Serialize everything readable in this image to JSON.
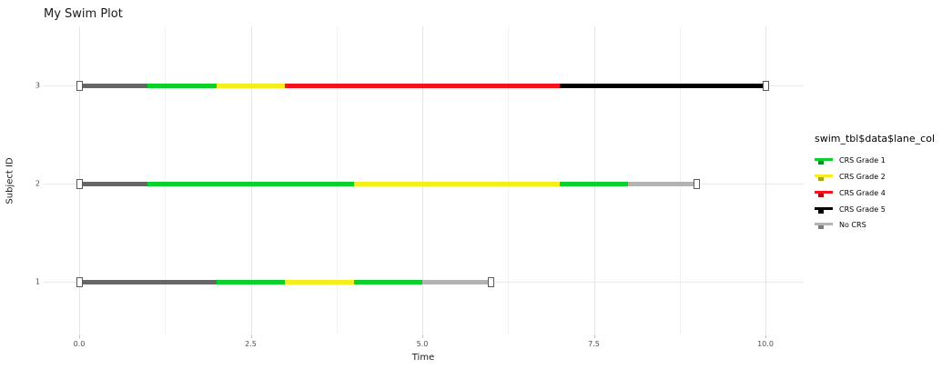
{
  "title": "My Swim Plot",
  "x_axis": {
    "label": "Time",
    "ticks": [
      "0.0",
      "2.5",
      "5.0",
      "7.5",
      "10.0"
    ]
  },
  "y_axis": {
    "label": "Subject ID",
    "ticks": [
      "3",
      "2",
      "1"
    ]
  },
  "legend": {
    "title": "swim_tbl$data$lane_col",
    "items": [
      {
        "label": "CRS Grade 1",
        "color": "#0ad02c"
      },
      {
        "label": "CRS Grade 2",
        "color": "#f7ed1a"
      },
      {
        "label": "CRS Grade 4",
        "color": "#f5121d"
      },
      {
        "label": "CRS Grade 5",
        "color": "#000000"
      },
      {
        "label": "No CRS",
        "color": "#b3b3b3"
      }
    ]
  },
  "chart_data": {
    "type": "swimmer",
    "title": "My Swim Plot",
    "xlabel": "Time",
    "ylabel": "Subject ID",
    "xlim": [
      0,
      10.55
    ],
    "x_major_ticks": [
      0,
      2.5,
      5,
      7.5,
      10
    ],
    "x_major_tick_labels": [
      "0.0",
      "2.5",
      "5.0",
      "7.5",
      "10.0"
    ],
    "x_minor_ticks": [
      1.25,
      3.75,
      6.25,
      8.75
    ],
    "grid": true,
    "legend_position": "right",
    "marker_shape": "open-square",
    "lanes": [
      {
        "subject_id": "3",
        "start_marker": 0,
        "end_marker": 10,
        "segments": [
          {
            "start": 0,
            "end": 1,
            "color": "#666666",
            "category": null
          },
          {
            "start": 1,
            "end": 2,
            "color": "#0ad02c",
            "category": "CRS Grade 1"
          },
          {
            "start": 2,
            "end": 3,
            "color": "#f7ed1a",
            "category": "CRS Grade 2"
          },
          {
            "start": 3,
            "end": 7,
            "color": "#f5121d",
            "category": "CRS Grade 4"
          },
          {
            "start": 7,
            "end": 10,
            "color": "#000000",
            "category": "CRS Grade 5"
          }
        ]
      },
      {
        "subject_id": "2",
        "start_marker": 0,
        "end_marker": 9,
        "segments": [
          {
            "start": 0,
            "end": 1,
            "color": "#666666",
            "category": null
          },
          {
            "start": 1,
            "end": 4,
            "color": "#0ad02c",
            "category": "CRS Grade 1"
          },
          {
            "start": 4,
            "end": 7,
            "color": "#f7ed1a",
            "category": "CRS Grade 2"
          },
          {
            "start": 7,
            "end": 8,
            "color": "#0ad02c",
            "category": "CRS Grade 1"
          },
          {
            "start": 8,
            "end": 9,
            "color": "#b3b3b3",
            "category": "No CRS"
          }
        ]
      },
      {
        "subject_id": "1",
        "start_marker": 0,
        "end_marker": 6,
        "segments": [
          {
            "start": 0,
            "end": 2,
            "color": "#666666",
            "category": null
          },
          {
            "start": 2,
            "end": 3,
            "color": "#0ad02c",
            "category": "CRS Grade 1"
          },
          {
            "start": 3,
            "end": 4,
            "color": "#f7ed1a",
            "category": "CRS Grade 2"
          },
          {
            "start": 4,
            "end": 5,
            "color": "#0ad02c",
            "category": "CRS Grade 1"
          },
          {
            "start": 5,
            "end": 6,
            "color": "#b3b3b3",
            "category": "No CRS"
          }
        ]
      }
    ]
  }
}
